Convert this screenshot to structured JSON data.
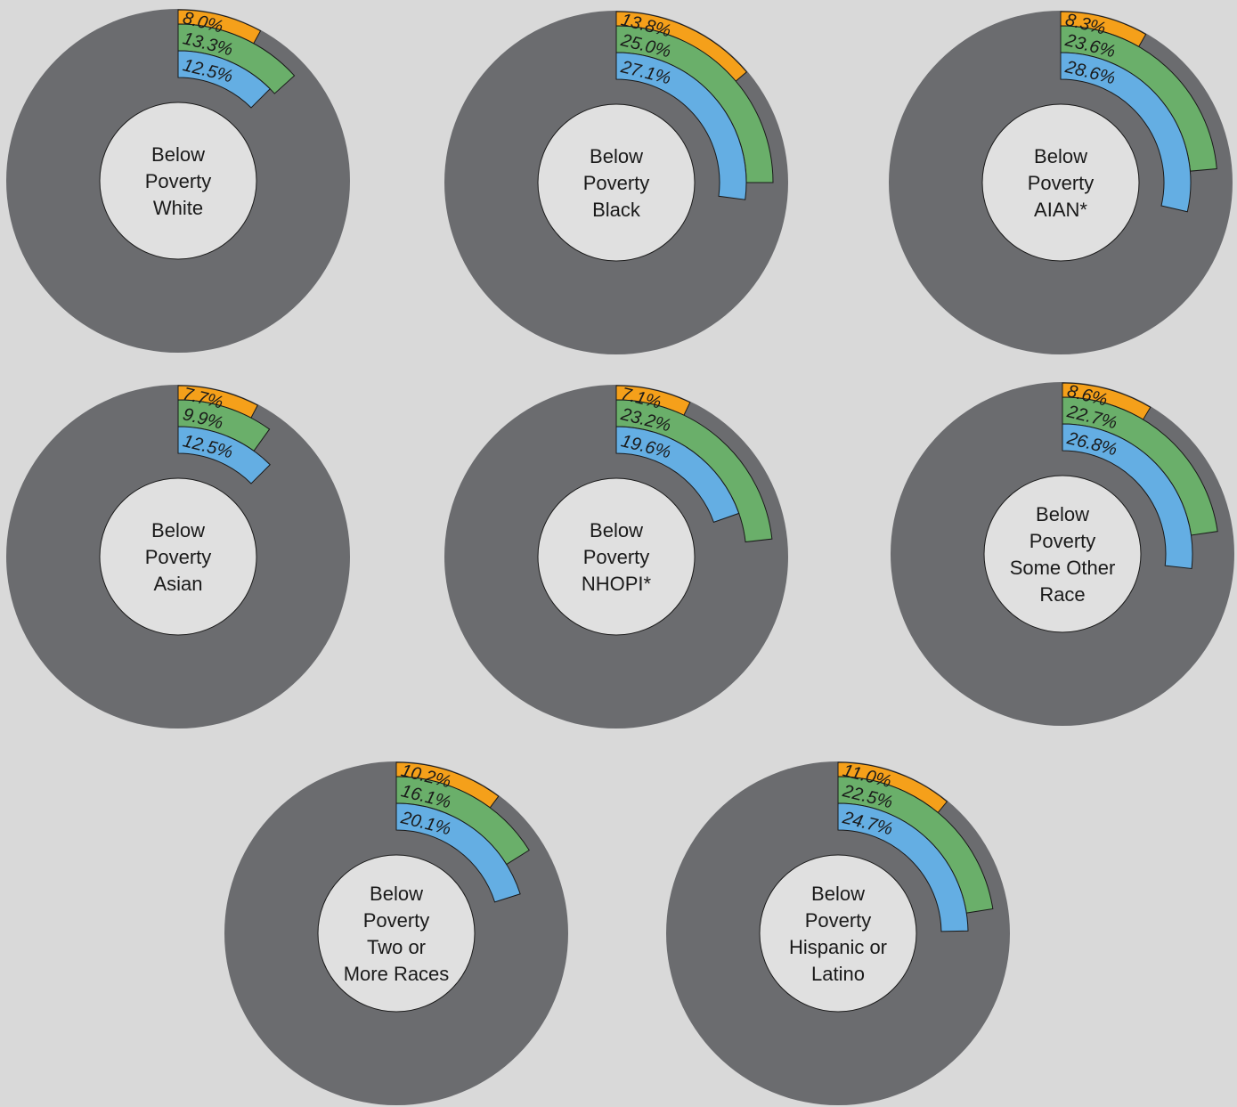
{
  "colors": {
    "background": "#d9d9d9",
    "ring": "#6b6c6f",
    "center": "#e0e0e0",
    "series": [
      "#f5a01a",
      "#6aaf6a",
      "#64aee3"
    ],
    "outline": "#1a1a1a"
  },
  "chart_data": {
    "type": "nested radial bar",
    "charts": [
      {
        "label": [
          "Below",
          "Poverty",
          "White"
        ],
        "values": [
          8.0,
          13.3,
          12.5
        ],
        "value_labels": [
          "8.0%",
          "13.3%",
          "12.5%"
        ]
      },
      {
        "label": [
          "Below",
          "Poverty",
          "Black"
        ],
        "values": [
          13.8,
          25.0,
          27.1
        ],
        "value_labels": [
          "13.8%",
          "25.0%",
          "27.1%"
        ]
      },
      {
        "label": [
          "Below",
          "Poverty",
          "AIAN*"
        ],
        "values": [
          8.3,
          23.6,
          28.6
        ],
        "value_labels": [
          "8.3%",
          "23.6%",
          "28.6%"
        ]
      },
      {
        "label": [
          "Below",
          "Poverty",
          "Asian"
        ],
        "values": [
          7.7,
          9.9,
          12.5
        ],
        "value_labels": [
          "7.7%",
          "9.9%",
          "12.5%"
        ]
      },
      {
        "label": [
          "Below",
          "Poverty",
          "NHOPI*"
        ],
        "values": [
          7.1,
          23.2,
          19.6
        ],
        "value_labels": [
          "7.1%",
          "23.2%",
          "19.6%"
        ]
      },
      {
        "label": [
          "Below",
          "Poverty",
          "Some Other",
          "Race"
        ],
        "values": [
          8.6,
          22.7,
          26.8
        ],
        "value_labels": [
          "8.6%",
          "22.7%",
          "26.8%"
        ]
      },
      {
        "label": [
          "Below",
          "Poverty",
          "Two or",
          "More Races"
        ],
        "values": [
          10.2,
          16.1,
          20.1
        ],
        "value_labels": [
          "10.2%",
          "16.1%",
          "20.1%"
        ]
      },
      {
        "label": [
          "Below",
          "Poverty",
          "Hispanic or",
          "Latino"
        ],
        "values": [
          11.0,
          22.5,
          24.7
        ],
        "value_labels": [
          "11.0%",
          "22.5%",
          "24.7%"
        ]
      }
    ]
  }
}
